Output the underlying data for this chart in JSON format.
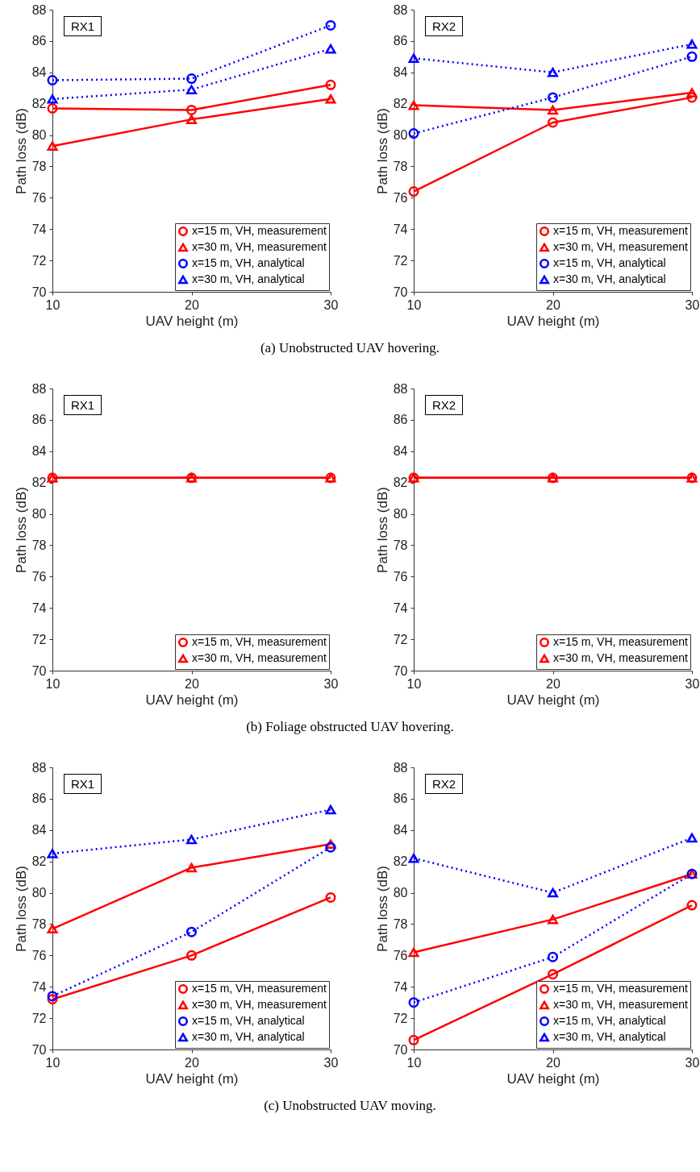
{
  "chart_data": [
    {
      "type": "line",
      "annotations": [
        "RX1",
        "(a) Unobstructed UAV hovering."
      ],
      "xlabel": "UAV height (m)",
      "ylabel": "Path loss (dB)",
      "x": [
        10,
        20,
        30
      ],
      "xlim": [
        10,
        30
      ],
      "xticks": [
        10,
        20,
        30
      ],
      "ylim": [
        70,
        88
      ],
      "yticks": [
        70,
        72,
        74,
        76,
        78,
        80,
        82,
        84,
        86,
        88
      ],
      "legend": "bottom right",
      "series": [
        {
          "name": "x=15 m, VH, measurement",
          "color": "#ff0000",
          "marker": "circle",
          "line_style": "solid",
          "values": [
            81.7,
            81.6,
            83.2
          ]
        },
        {
          "name": "x=30 m, VH, measurement",
          "color": "#ff0000",
          "marker": "triangle",
          "line_style": "solid",
          "values": [
            79.3,
            81.0,
            82.3
          ]
        },
        {
          "name": "x=15 m, VH, analytical",
          "color": "#0000ff",
          "marker": "circle",
          "line_style": "dotted",
          "values": [
            83.5,
            83.6,
            87.0
          ]
        },
        {
          "name": "x=30 m, VH, analytical",
          "color": "#0000ff",
          "marker": "triangle",
          "line_style": "dotted",
          "values": [
            82.3,
            82.9,
            85.5
          ]
        }
      ]
    },
    {
      "type": "line",
      "annotations": [
        "RX2"
      ],
      "xlabel": "UAV height (m)",
      "ylabel": "Path loss (dB)",
      "x": [
        10,
        20,
        30
      ],
      "xlim": [
        10,
        30
      ],
      "xticks": [
        10,
        20,
        30
      ],
      "ylim": [
        70,
        88
      ],
      "yticks": [
        70,
        72,
        74,
        76,
        78,
        80,
        82,
        84,
        86,
        88
      ],
      "legend": "bottom right",
      "series": [
        {
          "name": "x=15 m, VH, measurement",
          "color": "#ff0000",
          "marker": "circle",
          "line_style": "solid",
          "values": [
            76.4,
            80.8,
            82.4
          ]
        },
        {
          "name": "x=30 m, VH, measurement",
          "color": "#ff0000",
          "marker": "triangle",
          "line_style": "solid",
          "values": [
            81.9,
            81.6,
            82.7
          ]
        },
        {
          "name": "x=15 m, VH, analytical",
          "color": "#0000ff",
          "marker": "circle",
          "line_style": "dotted",
          "values": [
            80.1,
            82.4,
            85.0
          ]
        },
        {
          "name": "x=30 m, VH, analytical",
          "color": "#0000ff",
          "marker": "triangle",
          "line_style": "dotted",
          "values": [
            84.9,
            84.0,
            85.8
          ]
        }
      ]
    },
    {
      "type": "line",
      "annotations": [
        "RX1",
        "(b) Foliage obstructed UAV hovering."
      ],
      "xlabel": "UAV height (m)",
      "ylabel": "Path loss (dB)",
      "x": [
        10,
        20,
        30
      ],
      "xlim": [
        10,
        30
      ],
      "xticks": [
        10,
        20,
        30
      ],
      "ylim": [
        70,
        88
      ],
      "yticks": [
        70,
        72,
        74,
        76,
        78,
        80,
        82,
        84,
        86,
        88
      ],
      "legend": "bottom right",
      "series": [
        {
          "name": "x=15 m, VH, measurement",
          "color": "#ff0000",
          "marker": "circle",
          "line_style": "solid",
          "values": [
            82.3,
            82.3,
            82.3
          ]
        },
        {
          "name": "x=30 m, VH, measurement",
          "color": "#ff0000",
          "marker": "triangle",
          "line_style": "solid",
          "values": [
            82.3,
            82.3,
            82.3
          ]
        }
      ]
    },
    {
      "type": "line",
      "annotations": [
        "RX2"
      ],
      "xlabel": "UAV height (m)",
      "ylabel": "Path loss (dB)",
      "x": [
        10,
        20,
        30
      ],
      "xlim": [
        10,
        30
      ],
      "xticks": [
        10,
        20,
        30
      ],
      "ylim": [
        70,
        88
      ],
      "yticks": [
        70,
        72,
        74,
        76,
        78,
        80,
        82,
        84,
        86,
        88
      ],
      "legend": "bottom right",
      "series": [
        {
          "name": "x=15 m, VH, measurement",
          "color": "#ff0000",
          "marker": "circle",
          "line_style": "solid",
          "values": [
            82.3,
            82.3,
            82.3
          ]
        },
        {
          "name": "x=30 m, VH, measurement",
          "color": "#ff0000",
          "marker": "triangle",
          "line_style": "solid",
          "values": [
            82.3,
            82.3,
            82.3
          ]
        }
      ]
    },
    {
      "type": "line",
      "annotations": [
        "RX1",
        "(c) Unobstructed UAV moving."
      ],
      "xlabel": "UAV height (m)",
      "ylabel": "Path loss (dB)",
      "x": [
        10,
        20,
        30
      ],
      "xlim": [
        10,
        30
      ],
      "xticks": [
        10,
        20,
        30
      ],
      "ylim": [
        70,
        88
      ],
      "yticks": [
        70,
        72,
        74,
        76,
        78,
        80,
        82,
        84,
        86,
        88
      ],
      "legend": "bottom right",
      "series": [
        {
          "name": "x=15 m, VH, measurement",
          "color": "#ff0000",
          "marker": "circle",
          "line_style": "solid",
          "values": [
            73.2,
            76.0,
            79.7
          ]
        },
        {
          "name": "x=30 m, VH, measurement",
          "color": "#ff0000",
          "marker": "triangle",
          "line_style": "solid",
          "values": [
            77.7,
            81.6,
            83.1
          ]
        },
        {
          "name": "x=15 m, VH, analytical",
          "color": "#0000ff",
          "marker": "circle",
          "line_style": "dotted",
          "values": [
            73.4,
            77.5,
            82.9
          ]
        },
        {
          "name": "x=30 m, VH, analytical",
          "color": "#0000ff",
          "marker": "triangle",
          "line_style": "dotted",
          "values": [
            82.5,
            83.4,
            85.3
          ]
        }
      ]
    },
    {
      "type": "line",
      "annotations": [
        "RX2"
      ],
      "xlabel": "UAV height (m)",
      "ylabel": "Path loss (dB)",
      "x": [
        10,
        20,
        30
      ],
      "xlim": [
        10,
        30
      ],
      "xticks": [
        10,
        20,
        30
      ],
      "ylim": [
        70,
        88
      ],
      "yticks": [
        70,
        72,
        74,
        76,
        78,
        80,
        82,
        84,
        86,
        88
      ],
      "legend": "bottom right",
      "series": [
        {
          "name": "x=15 m, VH, measurement",
          "color": "#ff0000",
          "marker": "circle",
          "line_style": "solid",
          "values": [
            70.6,
            74.8,
            79.2
          ]
        },
        {
          "name": "x=30 m, VH, measurement",
          "color": "#ff0000",
          "marker": "triangle",
          "line_style": "solid",
          "values": [
            76.2,
            78.3,
            81.2
          ]
        },
        {
          "name": "x=15 m, VH, analytical",
          "color": "#0000ff",
          "marker": "circle",
          "line_style": "dotted",
          "values": [
            73.0,
            75.9,
            81.2
          ]
        },
        {
          "name": "x=30 m, VH, analytical",
          "color": "#0000ff",
          "marker": "triangle",
          "line_style": "dotted",
          "values": [
            82.2,
            80.0,
            83.5
          ]
        }
      ]
    }
  ]
}
